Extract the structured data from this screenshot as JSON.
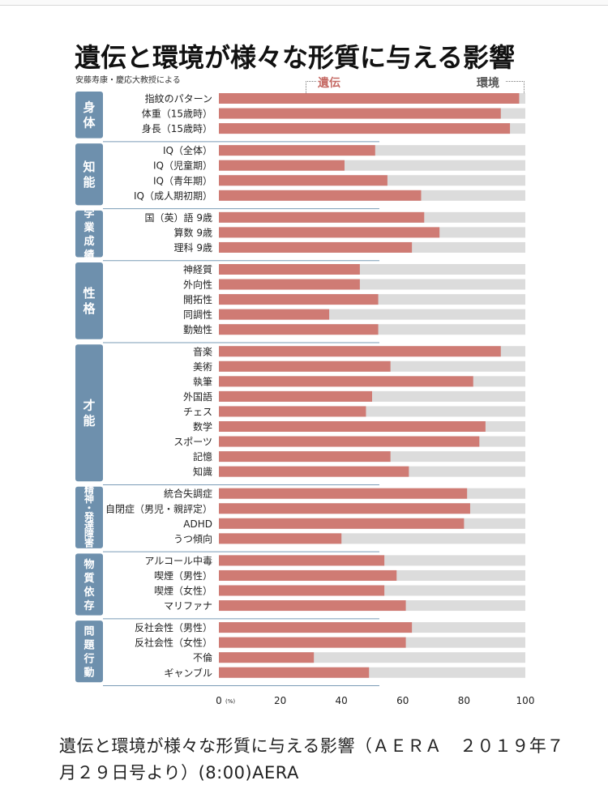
{
  "title": "遺伝と環境が様々な形質に与える影響",
  "subtitle": "安藤寿康・慶応大教授による",
  "legend": {
    "gene": "遺伝",
    "env": "環境"
  },
  "colors": {
    "gene": "#cf7b74",
    "env": "#dcdcdc",
    "group": "#6e90ad"
  },
  "caption": "遺伝と環境が様々な形質に与える影響（ＡＥＲＡ　２０１９年７月２９日号より）(8:00)AERA",
  "chart_data": {
    "type": "bar",
    "orientation": "horizontal",
    "stacked_to": 100,
    "xlim": [
      0,
      100
    ],
    "xticks": [
      "0",
      "20",
      "40",
      "60",
      "80",
      "100"
    ],
    "xtick_unit": "(%)",
    "series": [
      {
        "name": "遺伝"
      },
      {
        "name": "環境"
      }
    ],
    "groups": [
      {
        "label": "身体",
        "items": [
          {
            "label": "指紋のパターン",
            "value": 98
          },
          {
            "label": "体重（15歳時）",
            "value": 92
          },
          {
            "label": "身長（15歳時）",
            "value": 95
          }
        ]
      },
      {
        "label": "知能",
        "items": [
          {
            "label": "IQ（全体）",
            "value": 51
          },
          {
            "label": "IQ（児童期）",
            "value": 41
          },
          {
            "label": "IQ（青年期）",
            "value": 55
          },
          {
            "label": "IQ（成人期初期）",
            "value": 66
          }
        ]
      },
      {
        "label": "学業成績",
        "items": [
          {
            "label": "国（英）語 9歳",
            "value": 67
          },
          {
            "label": "算数 9歳",
            "value": 72
          },
          {
            "label": "理科 9歳",
            "value": 63
          }
        ]
      },
      {
        "label": "性格",
        "items": [
          {
            "label": "神経質",
            "value": 46
          },
          {
            "label": "外向性",
            "value": 46
          },
          {
            "label": "開拓性",
            "value": 52
          },
          {
            "label": "同調性",
            "value": 36
          },
          {
            "label": "勤勉性",
            "value": 52
          }
        ]
      },
      {
        "label": "才能",
        "items": [
          {
            "label": "音楽",
            "value": 92
          },
          {
            "label": "美術",
            "value": 56
          },
          {
            "label": "執筆",
            "value": 83
          },
          {
            "label": "外国語",
            "value": 50
          },
          {
            "label": "チェス",
            "value": 48
          },
          {
            "label": "数学",
            "value": 87
          },
          {
            "label": "スポーツ",
            "value": 85
          },
          {
            "label": "記憶",
            "value": 56
          },
          {
            "label": "知識",
            "value": 62
          }
        ]
      },
      {
        "label": "精神・発達障害",
        "items": [
          {
            "label": "統合失調症",
            "value": 81
          },
          {
            "label": "自閉症（男児・親評定）",
            "value": 82
          },
          {
            "label": "ADHD",
            "value": 80
          },
          {
            "label": "うつ傾向",
            "value": 40
          }
        ]
      },
      {
        "label": "物質依存",
        "items": [
          {
            "label": "アルコール中毒",
            "value": 54
          },
          {
            "label": "喫煙（男性）",
            "value": 58
          },
          {
            "label": "喫煙（女性）",
            "value": 54
          },
          {
            "label": "マリファナ",
            "value": 61
          }
        ]
      },
      {
        "label": "問題行動",
        "items": [
          {
            "label": "反社会性（男性）",
            "value": 63
          },
          {
            "label": "反社会性（女性）",
            "value": 61
          },
          {
            "label": "不倫",
            "value": 31
          },
          {
            "label": "ギャンブル",
            "value": 49
          }
        ]
      }
    ]
  }
}
